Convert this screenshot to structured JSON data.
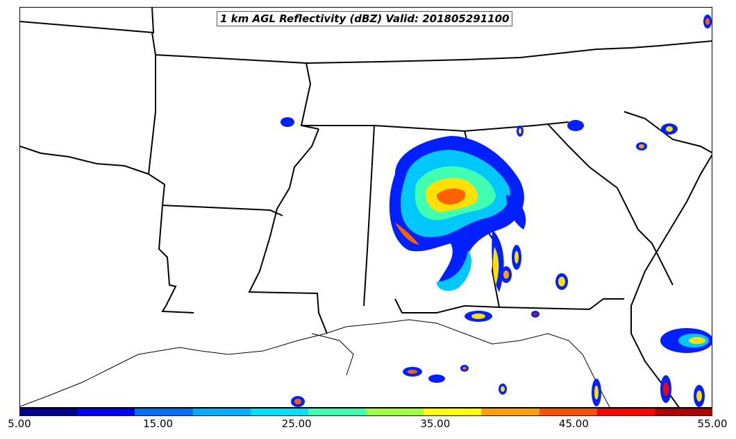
{
  "title": "1 km AGL Reflectivity (dBZ) Valid: 201805291100",
  "colorbar": {
    "colors": [
      "#00008b",
      "#0000ff",
      "#0070ff",
      "#00b0ff",
      "#00e0ff",
      "#40ffb0",
      "#a0ff40",
      "#ffff00",
      "#ffa000",
      "#ff5000",
      "#ff0000",
      "#b00000"
    ],
    "tick_labels": [
      "5.00",
      "15.00",
      "25.00",
      "35.00",
      "45.00",
      "55.00"
    ]
  },
  "colors": {
    "boundary": "#000000",
    "outer_echo": "#0020ff",
    "mid_echo": "#00c8ff",
    "inner_echo": "#ffe000",
    "core_echo": "#ff6000"
  }
}
